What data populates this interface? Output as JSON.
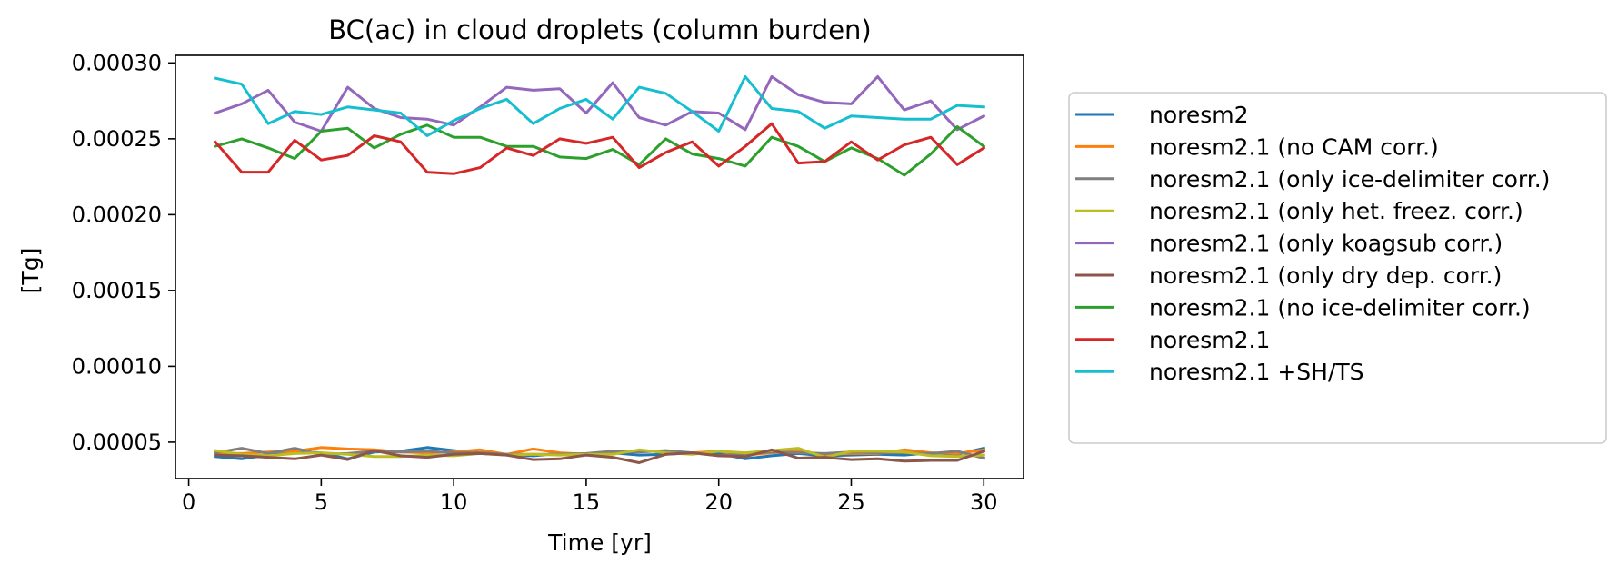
{
  "chart_data": {
    "type": "line",
    "title": "BC(ac) in cloud droplets (column burden)",
    "xlabel": "Time [yr]",
    "ylabel": "[Tg]",
    "xlim": [
      -0.5,
      31.5
    ],
    "ylim": [
      2.6e-05,
      0.000305
    ],
    "xticks": [
      0,
      5,
      10,
      15,
      20,
      25,
      30
    ],
    "xtick_labels": [
      "0",
      "5",
      "10",
      "15",
      "20",
      "25",
      "30"
    ],
    "yticks": [
      5e-05,
      0.0001,
      0.00015,
      0.0002,
      0.00025,
      0.0003
    ],
    "ytick_labels": [
      "0.00005",
      "0.00010",
      "0.00015",
      "0.00020",
      "0.00025",
      "0.00030"
    ],
    "grid": false,
    "legend_position": "outside-right",
    "x": [
      1,
      2,
      3,
      4,
      5,
      6,
      7,
      8,
      9,
      10,
      11,
      12,
      13,
      14,
      15,
      16,
      17,
      18,
      19,
      20,
      21,
      22,
      23,
      24,
      25,
      26,
      27,
      28,
      29,
      30
    ],
    "series": [
      {
        "name": "noresm2",
        "color": "#1f77b4",
        "values": [
          4.05e-05,
          3.9e-05,
          4.15e-05,
          4.4e-05,
          4.3e-05,
          3.9e-05,
          4.35e-05,
          4.4e-05,
          4.65e-05,
          4.45e-05,
          4.3e-05,
          4.2e-05,
          4.1e-05,
          4.25e-05,
          4.2e-05,
          4.3e-05,
          4.15e-05,
          4.2e-05,
          4.3e-05,
          4.25e-05,
          3.9e-05,
          4.1e-05,
          4.25e-05,
          4.1e-05,
          4.15e-05,
          4.2e-05,
          4.15e-05,
          4.3e-05,
          4.2e-05,
          4.6e-05
        ]
      },
      {
        "name": "noresm2.1 (no CAM corr.)",
        "color": "#ff7f0e",
        "values": [
          4.3e-05,
          4.25e-05,
          4.35e-05,
          4.4e-05,
          4.65e-05,
          4.55e-05,
          4.5e-05,
          4.35e-05,
          4.3e-05,
          4.35e-05,
          4.5e-05,
          4.2e-05,
          4.55e-05,
          4.3e-05,
          4.2e-05,
          4.3e-05,
          4.45e-05,
          4.35e-05,
          4.3e-05,
          4.4e-05,
          4.15e-05,
          4.3e-05,
          4.4e-05,
          4.2e-05,
          4.25e-05,
          4.25e-05,
          4.5e-05,
          4.3e-05,
          4.25e-05,
          4.5e-05
        ]
      },
      {
        "name": "noresm2.1 (only ice-delimiter corr.)",
        "color": "#7f7f7f",
        "values": [
          4.3e-05,
          4.6e-05,
          4.25e-05,
          4.6e-05,
          4.2e-05,
          4.25e-05,
          4.4e-05,
          4.35e-05,
          4.4e-05,
          4.3e-05,
          4.3e-05,
          4.2e-05,
          4.2e-05,
          4.2e-05,
          4.25e-05,
          4.4e-05,
          4.35e-05,
          4.45e-05,
          4.3e-05,
          4.1e-05,
          4.25e-05,
          4.35e-05,
          4.3e-05,
          4.25e-05,
          4.35e-05,
          4.3e-05,
          4.3e-05,
          4.25e-05,
          4.4e-05,
          3.95e-05
        ]
      },
      {
        "name": "noresm2.1 (only het. freez. corr.)",
        "color": "#bcbd22",
        "values": [
          4.45e-05,
          4.2e-05,
          4.1e-05,
          4.25e-05,
          4.3e-05,
          4.2e-05,
          4.05e-05,
          4.05e-05,
          4.15e-05,
          4.1e-05,
          4.25e-05,
          4.15e-05,
          4.2e-05,
          4.15e-05,
          4.2e-05,
          4.2e-05,
          4.5e-05,
          4.3e-05,
          4.2e-05,
          4.4e-05,
          4.3e-05,
          4.45e-05,
          4.6e-05,
          4e-05,
          4.4e-05,
          4.4e-05,
          4.35e-05,
          4.1e-05,
          4.05e-05,
          4.15e-05
        ]
      },
      {
        "name": "noresm2.1 (only koagsub corr.)",
        "color": "#9467bd",
        "values": [
          0.000267,
          0.000273,
          0.000282,
          0.000261,
          0.000255,
          0.000284,
          0.00027,
          0.000264,
          0.000263,
          0.000259,
          0.000271,
          0.000284,
          0.000282,
          0.000283,
          0.000267,
          0.000287,
          0.000264,
          0.000259,
          0.000268,
          0.000267,
          0.000256,
          0.000291,
          0.000279,
          0.000274,
          0.000273,
          0.000291,
          0.000269,
          0.000275,
          0.000256,
          0.000265
        ]
      },
      {
        "name": "noresm2.1 (only dry dep. corr.)",
        "color": "#8c564b",
        "values": [
          4.15e-05,
          4.1e-05,
          4e-05,
          3.9e-05,
          4.15e-05,
          3.85e-05,
          4.45e-05,
          4.1e-05,
          4e-05,
          4.2e-05,
          4.25e-05,
          4.15e-05,
          3.85e-05,
          3.9e-05,
          4.15e-05,
          4e-05,
          3.65e-05,
          4.2e-05,
          4.3e-05,
          4.1e-05,
          4.05e-05,
          4.5e-05,
          3.95e-05,
          4e-05,
          3.85e-05,
          3.9e-05,
          3.75e-05,
          3.8e-05,
          3.8e-05,
          4.4e-05
        ]
      },
      {
        "name": "noresm2.1 (no ice-delimiter corr.)",
        "color": "#2ca02c",
        "values": [
          0.000245,
          0.00025,
          0.000244,
          0.000237,
          0.000255,
          0.000257,
          0.000244,
          0.000253,
          0.000259,
          0.000251,
          0.000251,
          0.000245,
          0.000245,
          0.000238,
          0.000237,
          0.000243,
          0.000233,
          0.00025,
          0.00024,
          0.000237,
          0.000232,
          0.000251,
          0.000245,
          0.000235,
          0.000244,
          0.000237,
          0.000226,
          0.00024,
          0.000258,
          0.000245
        ]
      },
      {
        "name": "noresm2.1",
        "color": "#d62728",
        "values": [
          0.000248,
          0.000228,
          0.000228,
          0.000249,
          0.000236,
          0.000239,
          0.000252,
          0.000248,
          0.000228,
          0.000227,
          0.000231,
          0.000244,
          0.000239,
          0.00025,
          0.000247,
          0.000251,
          0.000231,
          0.000241,
          0.000248,
          0.000232,
          0.000245,
          0.00026,
          0.000234,
          0.000235,
          0.000248,
          0.000236,
          0.000246,
          0.000251,
          0.000233,
          0.000244
        ]
      },
      {
        "name": "noresm2.1 +SH/TS",
        "color": "#17becf",
        "values": [
          0.00029,
          0.000286,
          0.00026,
          0.000268,
          0.000266,
          0.000271,
          0.000269,
          0.000267,
          0.000252,
          0.000262,
          0.00027,
          0.000276,
          0.00026,
          0.00027,
          0.000276,
          0.000263,
          0.000284,
          0.00028,
          0.000268,
          0.000255,
          0.000291,
          0.00027,
          0.000268,
          0.000257,
          0.000265,
          0.000264,
          0.000263,
          0.000263,
          0.000272,
          0.000271
        ]
      }
    ]
  }
}
